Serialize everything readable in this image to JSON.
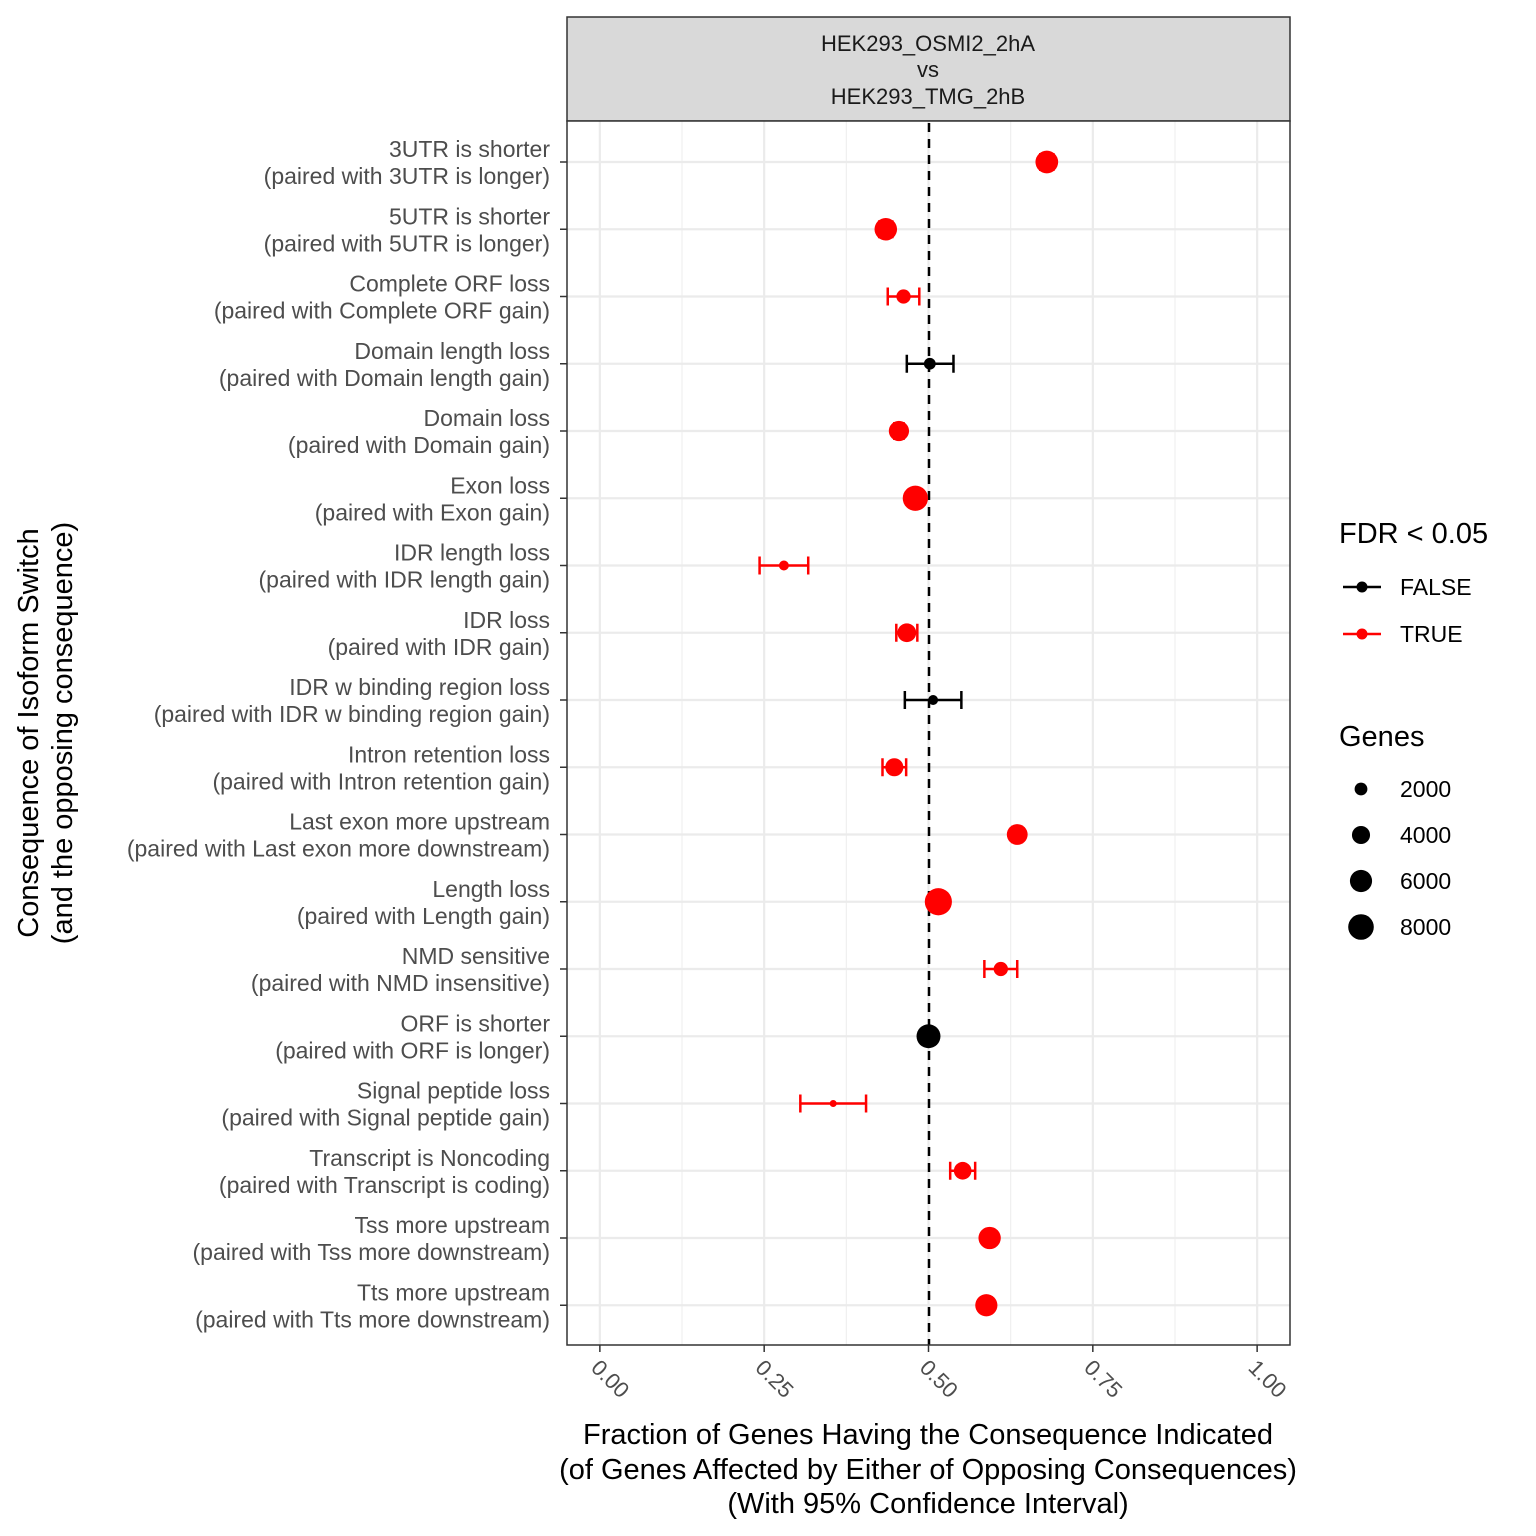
{
  "chart_data": {
    "type": "scatter",
    "facet_title": [
      "HEK293_OSMI2_2hA",
      "vs",
      "HEK293_TMG_2hB"
    ],
    "xlabel": [
      "Fraction of Genes Having the Consequence Indicated",
      "(of Genes Affected by Either of Opposing Consequences)",
      "(With 95% Confidence Interval)"
    ],
    "ylabel": [
      "Consequence of Isoform Switch",
      "(and the opposing consequence)"
    ],
    "xlim": [
      -0.05,
      1.05
    ],
    "x_ticks": [
      0,
      0.25,
      0.5,
      0.75,
      1.0
    ],
    "x_tick_labels": [
      "0.00",
      "0.25",
      "0.50",
      "0.75",
      "1.00"
    ],
    "reference_line_x": 0.5,
    "grid": true,
    "colors": {
      "FALSE": "#000000",
      "TRUE": "#ff0000"
    },
    "points": [
      {
        "label": [
          "3UTR is shorter",
          "(paired with 3UTR is longer)"
        ],
        "x": 0.68,
        "lo": 0.67,
        "hi": 0.69,
        "genes": 6300,
        "fdr": "TRUE"
      },
      {
        "label": [
          "5UTR is shorter",
          "(paired with 5UTR is longer)"
        ],
        "x": 0.435,
        "lo": 0.425,
        "hi": 0.445,
        "genes": 6200,
        "fdr": "TRUE"
      },
      {
        "label": [
          "Complete ORF loss",
          "(paired with Complete ORF gain)"
        ],
        "x": 0.462,
        "lo": 0.438,
        "hi": 0.486,
        "genes": 2500,
        "fdr": "TRUE"
      },
      {
        "label": [
          "Domain length loss",
          "(paired with Domain length gain)"
        ],
        "x": 0.502,
        "lo": 0.467,
        "hi": 0.538,
        "genes": 1700,
        "fdr": "FALSE"
      },
      {
        "label": [
          "Domain loss",
          "(paired with Domain gain)"
        ],
        "x": 0.455,
        "lo": 0.448,
        "hi": 0.462,
        "genes": 5000,
        "fdr": "TRUE"
      },
      {
        "label": [
          "Exon loss",
          "(paired with Exon gain)"
        ],
        "x": 0.48,
        "lo": 0.474,
        "hi": 0.486,
        "genes": 7800,
        "fdr": "TRUE"
      },
      {
        "label": [
          "IDR length loss",
          "(paired with IDR length gain)"
        ],
        "x": 0.28,
        "lo": 0.243,
        "hi": 0.317,
        "genes": 1200,
        "fdr": "TRUE"
      },
      {
        "label": [
          "IDR loss",
          "(paired with IDR gain)"
        ],
        "x": 0.467,
        "lo": 0.451,
        "hi": 0.483,
        "genes": 4300,
        "fdr": "TRUE"
      },
      {
        "label": [
          "IDR w binding region loss",
          "(paired with IDR w binding region gain)"
        ],
        "x": 0.507,
        "lo": 0.464,
        "hi": 0.55,
        "genes": 1200,
        "fdr": "FALSE"
      },
      {
        "label": [
          "Intron retention loss",
          "(paired with Intron retention gain)"
        ],
        "x": 0.448,
        "lo": 0.43,
        "hi": 0.466,
        "genes": 4000,
        "fdr": "TRUE"
      },
      {
        "label": [
          "Last exon more upstream",
          "(paired with Last exon more downstream)"
        ],
        "x": 0.635,
        "lo": 0.628,
        "hi": 0.642,
        "genes": 5300,
        "fdr": "TRUE"
      },
      {
        "label": [
          "Length loss",
          "(paired with Length gain)"
        ],
        "x": 0.515,
        "lo": 0.51,
        "hi": 0.52,
        "genes": 9000,
        "fdr": "TRUE"
      },
      {
        "label": [
          "NMD sensitive",
          "(paired with NMD insensitive)"
        ],
        "x": 0.61,
        "lo": 0.585,
        "hi": 0.635,
        "genes": 2500,
        "fdr": "TRUE"
      },
      {
        "label": [
          "ORF is shorter",
          "(paired with ORF is longer)"
        ],
        "x": 0.5,
        "lo": 0.493,
        "hi": 0.507,
        "genes": 7000,
        "fdr": "FALSE"
      },
      {
        "label": [
          "Signal peptide loss",
          "(paired with Signal peptide gain)"
        ],
        "x": 0.355,
        "lo": 0.305,
        "hi": 0.405,
        "genes": 600,
        "fdr": "TRUE"
      },
      {
        "label": [
          "Transcript is Noncoding",
          "(paired with Transcript is coding)"
        ],
        "x": 0.552,
        "lo": 0.533,
        "hi": 0.571,
        "genes": 3800,
        "fdr": "TRUE"
      },
      {
        "label": [
          "Tss more upstream",
          "(paired with Tss more downstream)"
        ],
        "x": 0.593,
        "lo": 0.586,
        "hi": 0.6,
        "genes": 6100,
        "fdr": "TRUE"
      },
      {
        "label": [
          "Tts more upstream",
          "(paired with Tts more downstream)"
        ],
        "x": 0.588,
        "lo": 0.58,
        "hi": 0.596,
        "genes": 6000,
        "fdr": "TRUE"
      }
    ],
    "legend": {
      "placement": "right",
      "color_title": "FDR < 0.05",
      "color_entries": [
        {
          "label": "FALSE",
          "color": "#000000"
        },
        {
          "label": "TRUE",
          "color": "#ff0000"
        }
      ],
      "size_title": "Genes",
      "size_entries": [
        {
          "label": "2000",
          "value": 2000
        },
        {
          "label": "4000",
          "value": 4000
        },
        {
          "label": "6000",
          "value": 6000
        },
        {
          "label": "8000",
          "value": 8000
        }
      ]
    }
  }
}
